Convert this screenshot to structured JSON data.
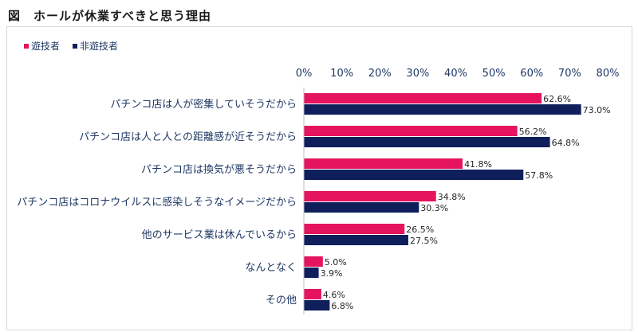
{
  "figure": {
    "title": "図　ホールが休業すべきと思う理由"
  },
  "chart_data": {
    "type": "bar",
    "orientation": "horizontal",
    "title": "図　ホールが休業すべきと思う理由",
    "xlim": [
      0,
      80
    ],
    "x_ticks": [
      0,
      10,
      20,
      30,
      40,
      50,
      60,
      70,
      80
    ],
    "x_tick_labels": [
      "0%",
      "10%",
      "20%",
      "30%",
      "40%",
      "50%",
      "60%",
      "70%",
      "80%"
    ],
    "categories": [
      "パチンコ店は人が密集していそうだから",
      "パチンコ店は人と人との距離感が近そうだから",
      "パチンコ店は換気が悪そうだから",
      "パチンコ店はコロナウイルスに感染しそうなイメージだから",
      "他のサービス業は休んでいるから",
      "なんとなく",
      "その他"
    ],
    "series": [
      {
        "name": "遊技者",
        "color": "#e6135e",
        "values": [
          62.6,
          56.2,
          41.8,
          34.8,
          26.5,
          5.0,
          4.6
        ],
        "labels": [
          "62.6%",
          "56.2%",
          "41.8%",
          "34.8%",
          "26.5%",
          "5.0%",
          "4.6%"
        ]
      },
      {
        "name": "非遊技者",
        "color": "#0f1f5c",
        "values": [
          73.0,
          64.8,
          57.8,
          30.3,
          27.5,
          3.9,
          6.8
        ],
        "labels": [
          "73.0%",
          "64.8%",
          "57.8%",
          "30.3%",
          "27.5%",
          "3.9%",
          "6.8%"
        ]
      }
    ],
    "legend_position": "top-left",
    "grid": false
  }
}
